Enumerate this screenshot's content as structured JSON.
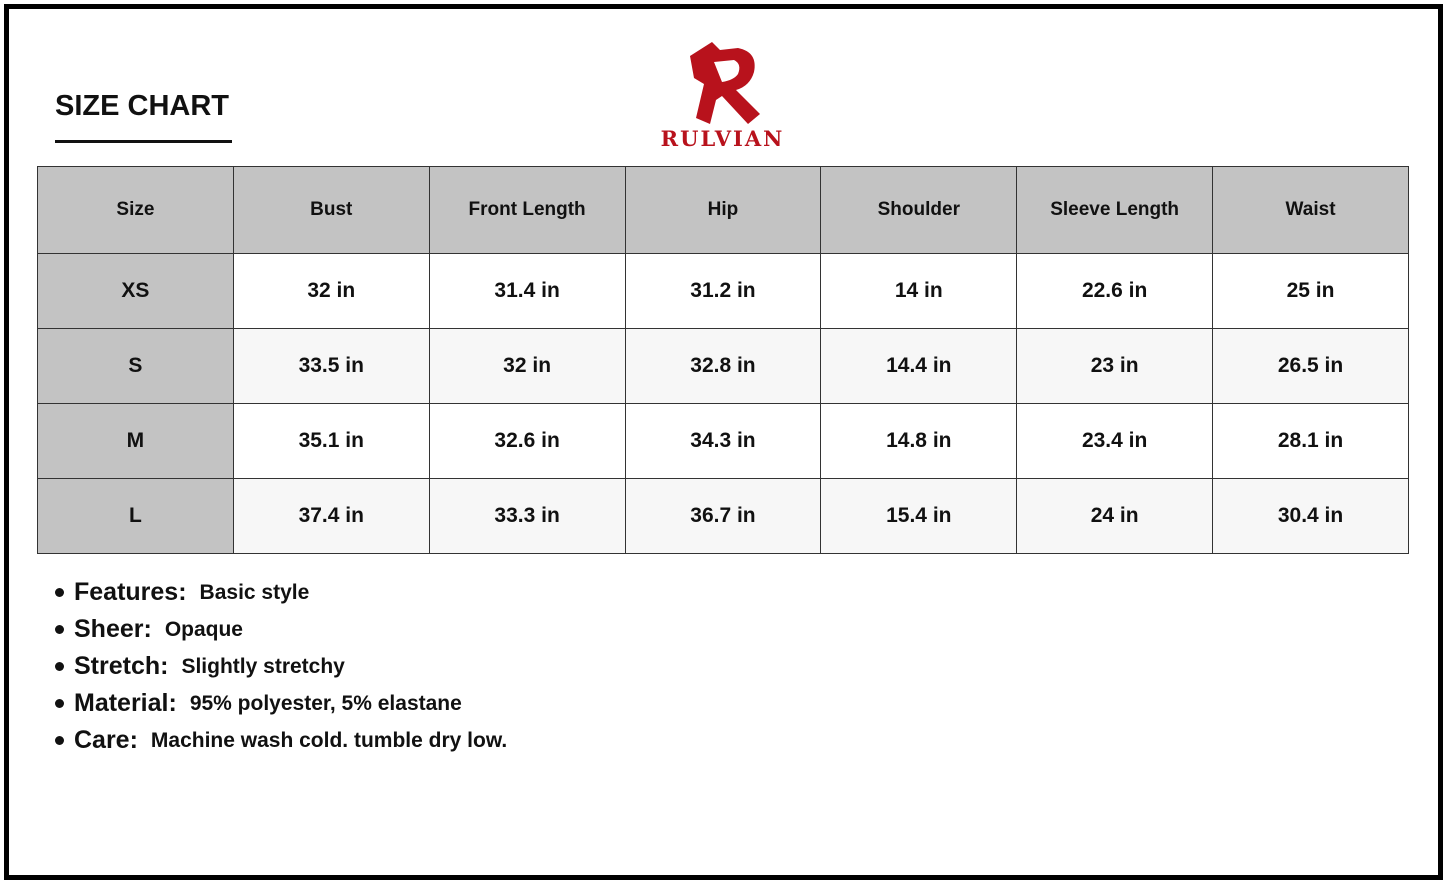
{
  "header": {
    "title": "SIZE CHART",
    "brand": "RULVIAN"
  },
  "table": {
    "columns": [
      "Size",
      "Bust",
      "Front Length",
      "Hip",
      "Shoulder",
      "Sleeve Length",
      "Waist"
    ],
    "rows": [
      [
        "XS",
        "32 in",
        "31.4 in",
        "31.2 in",
        "14 in",
        "22.6 in",
        "25 in"
      ],
      [
        "S",
        "33.5 in",
        "32 in",
        "32.8 in",
        "14.4 in",
        "23 in",
        "26.5 in"
      ],
      [
        "M",
        "35.1 in",
        "32.6 in",
        "34.3 in",
        "14.8 in",
        "23.4 in",
        "28.1 in"
      ],
      [
        "L",
        "37.4 in",
        "33.3 in",
        "36.7 in",
        "15.4 in",
        "24 in",
        "30.4 in"
      ]
    ]
  },
  "features": [
    {
      "label": "Features:",
      "value": "Basic style"
    },
    {
      "label": "Sheer:",
      "value": "Opaque"
    },
    {
      "label": "Stretch:",
      "value": "Slightly stretchy"
    },
    {
      "label": "Material:",
      "value": "95% polyester, 5% elastane"
    },
    {
      "label": "Care:",
      "value": "Machine wash cold. tumble dry low."
    }
  ]
}
